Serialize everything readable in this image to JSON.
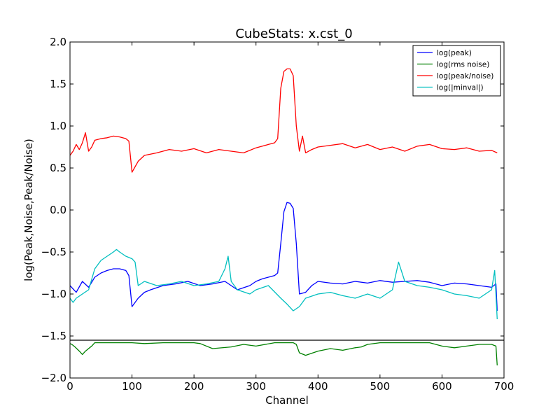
{
  "chart_data": {
    "type": "line",
    "title": "CubeStats: x.cst_0",
    "xlabel": "Channel",
    "ylabel": "log(Peak,Noise,Peak/Noise)",
    "xlim": [
      0,
      700
    ],
    "ylim": [
      -2.0,
      2.0
    ],
    "xticks": [
      0,
      100,
      200,
      300,
      400,
      500,
      600,
      700
    ],
    "yticks": [
      -2.0,
      -1.5,
      -1.0,
      -0.5,
      0.0,
      0.5,
      1.0,
      1.5,
      2.0
    ],
    "xtick_labels": [
      "0",
      "100",
      "200",
      "300",
      "400",
      "500",
      "600",
      "700"
    ],
    "ytick_labels": [
      "−2.0",
      "−1.5",
      "−1.0",
      "−0.5",
      "0.0",
      "0.5",
      "1.0",
      "1.5",
      "2.0"
    ],
    "grid": false,
    "legend_position": "top-right",
    "series": [
      {
        "name": "log(peak)",
        "color": "#0000ff",
        "x": [
          0,
          10,
          20,
          30,
          40,
          50,
          60,
          70,
          80,
          90,
          95,
          100,
          110,
          120,
          130,
          150,
          170,
          190,
          210,
          230,
          250,
          270,
          290,
          300,
          310,
          320,
          330,
          335,
          340,
          345,
          350,
          355,
          360,
          365,
          370,
          380,
          390,
          400,
          420,
          440,
          460,
          480,
          500,
          520,
          540,
          560,
          580,
          600,
          620,
          640,
          660,
          680,
          687,
          689
        ],
        "values": [
          -0.9,
          -0.98,
          -0.85,
          -0.92,
          -0.8,
          -0.75,
          -0.72,
          -0.7,
          -0.7,
          -0.72,
          -0.78,
          -1.15,
          -1.05,
          -0.98,
          -0.95,
          -0.9,
          -0.88,
          -0.85,
          -0.9,
          -0.88,
          -0.85,
          -0.95,
          -0.9,
          -0.85,
          -0.82,
          -0.8,
          -0.78,
          -0.75,
          -0.4,
          -0.02,
          0.09,
          0.08,
          0.02,
          -0.4,
          -1.0,
          -0.98,
          -0.9,
          -0.85,
          -0.87,
          -0.88,
          -0.85,
          -0.87,
          -0.84,
          -0.86,
          -0.85,
          -0.84,
          -0.86,
          -0.9,
          -0.87,
          -0.88,
          -0.9,
          -0.92,
          -0.88,
          -1.2
        ]
      },
      {
        "name": "log(rms noise)",
        "color": "#008000",
        "x": [
          0,
          3,
          8,
          15,
          20,
          25,
          35,
          40,
          100,
          120,
          150,
          200,
          210,
          230,
          260,
          280,
          300,
          330,
          340,
          345,
          350,
          360,
          365,
          370,
          380,
          400,
          420,
          440,
          460,
          470,
          480,
          500,
          520,
          560,
          570,
          580,
          600,
          620,
          640,
          660,
          680,
          687,
          689
        ],
        "values": [
          -1.59,
          -1.6,
          -1.63,
          -1.68,
          -1.72,
          -1.68,
          -1.62,
          -1.58,
          -1.58,
          -1.59,
          -1.58,
          -1.58,
          -1.59,
          -1.65,
          -1.63,
          -1.6,
          -1.62,
          -1.58,
          -1.58,
          -1.58,
          -1.58,
          -1.58,
          -1.6,
          -1.7,
          -1.73,
          -1.68,
          -1.65,
          -1.67,
          -1.64,
          -1.63,
          -1.6,
          -1.58,
          -1.58,
          -1.58,
          -1.58,
          -1.58,
          -1.62,
          -1.64,
          -1.62,
          -1.6,
          -1.6,
          -1.62,
          -1.85
        ]
      },
      {
        "name": "log(peak/noise)",
        "color": "#ff0000",
        "x": [
          0,
          5,
          10,
          15,
          20,
          25,
          30,
          35,
          40,
          50,
          60,
          70,
          80,
          90,
          95,
          100,
          110,
          120,
          140,
          160,
          180,
          200,
          220,
          240,
          260,
          280,
          300,
          320,
          330,
          335,
          340,
          345,
          350,
          355,
          360,
          365,
          370,
          375,
          380,
          390,
          400,
          420,
          440,
          460,
          480,
          500,
          520,
          540,
          560,
          580,
          600,
          620,
          640,
          660,
          680,
          689
        ],
        "values": [
          0.65,
          0.7,
          0.78,
          0.72,
          0.8,
          0.92,
          0.7,
          0.75,
          0.83,
          0.85,
          0.86,
          0.88,
          0.87,
          0.85,
          0.82,
          0.45,
          0.58,
          0.65,
          0.68,
          0.72,
          0.7,
          0.73,
          0.68,
          0.72,
          0.7,
          0.68,
          0.74,
          0.78,
          0.8,
          0.85,
          1.45,
          1.65,
          1.68,
          1.68,
          1.6,
          1.0,
          0.7,
          0.88,
          0.68,
          0.72,
          0.75,
          0.77,
          0.79,
          0.74,
          0.78,
          0.72,
          0.75,
          0.7,
          0.76,
          0.78,
          0.73,
          0.72,
          0.74,
          0.7,
          0.71,
          0.68
        ]
      },
      {
        "name": "log(|minval|)",
        "color": "#00bfbf",
        "x": [
          0,
          5,
          10,
          20,
          30,
          40,
          50,
          60,
          70,
          75,
          80,
          90,
          100,
          105,
          110,
          120,
          140,
          160,
          180,
          200,
          220,
          240,
          250,
          255,
          260,
          270,
          290,
          300,
          320,
          340,
          350,
          360,
          370,
          380,
          400,
          420,
          440,
          460,
          480,
          500,
          520,
          530,
          540,
          560,
          580,
          600,
          620,
          640,
          660,
          680,
          685,
          689
        ],
        "values": [
          -1.05,
          -1.1,
          -1.05,
          -1.0,
          -0.95,
          -0.7,
          -0.6,
          -0.55,
          -0.5,
          -0.47,
          -0.5,
          -0.55,
          -0.58,
          -0.62,
          -0.9,
          -0.85,
          -0.9,
          -0.88,
          -0.85,
          -0.9,
          -0.88,
          -0.85,
          -0.7,
          -0.55,
          -0.85,
          -0.95,
          -1.0,
          -0.95,
          -0.9,
          -1.05,
          -1.12,
          -1.2,
          -1.15,
          -1.05,
          -1.0,
          -0.98,
          -1.02,
          -1.05,
          -1.0,
          -1.05,
          -0.95,
          -0.62,
          -0.85,
          -0.9,
          -0.92,
          -0.95,
          -1.0,
          -1.02,
          -1.05,
          -0.95,
          -0.72,
          -1.3
        ]
      }
    ],
    "hlines": [
      {
        "y": -1.55,
        "color": "#000000"
      }
    ]
  }
}
